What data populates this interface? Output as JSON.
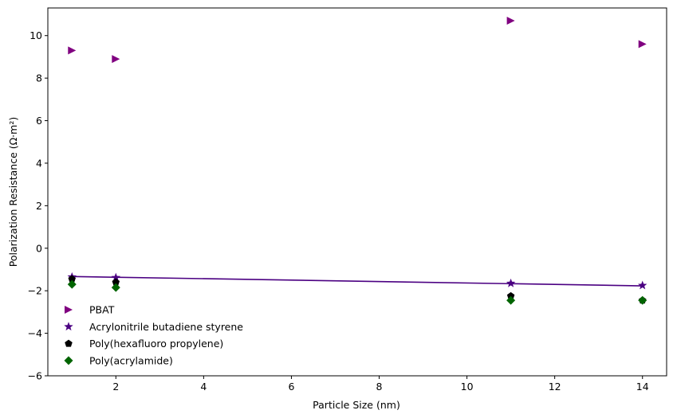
{
  "chart_data": {
    "type": "scatter",
    "xlabel": "Particle Size (nm)",
    "ylabel": "Polarization Resistance (Ω·m²)",
    "xlim": [
      0.45,
      14.55
    ],
    "ylim": [
      -6,
      11.3
    ],
    "xticks": [
      2,
      4,
      6,
      8,
      10,
      12,
      14
    ],
    "yticks": [
      -6,
      -4,
      -2,
      0,
      2,
      4,
      6,
      8,
      10
    ],
    "grid": false,
    "legend_position": "lower-left",
    "series": [
      {
        "name": "PBAT",
        "marker": "triangle-right",
        "color": "#800080",
        "x": [
          1,
          2,
          11,
          14
        ],
        "y": [
          9.3,
          8.9,
          10.7,
          9.6
        ]
      },
      {
        "name": "Acrylonitrile butadiene styrene",
        "marker": "star",
        "color": "#4b0082",
        "x": [
          1,
          2,
          11,
          14
        ],
        "y": [
          -1.35,
          -1.38,
          -1.65,
          -1.75
        ]
      },
      {
        "name": "Poly(hexafluoro propylene)",
        "marker": "pentagon",
        "color": "#000000",
        "x": [
          1,
          2,
          11,
          14
        ],
        "y": [
          -1.45,
          -1.6,
          -2.25,
          -2.45
        ]
      },
      {
        "name": "Poly(acrylamide)",
        "marker": "diamond",
        "color": "#006400",
        "x": [
          1,
          2,
          11,
          14
        ],
        "y": [
          -1.7,
          -1.85,
          -2.45,
          -2.45
        ]
      }
    ],
    "trend_line": {
      "color": "#4b0082",
      "x": [
        1,
        14
      ],
      "y": [
        -1.33,
        -1.77
      ]
    }
  }
}
